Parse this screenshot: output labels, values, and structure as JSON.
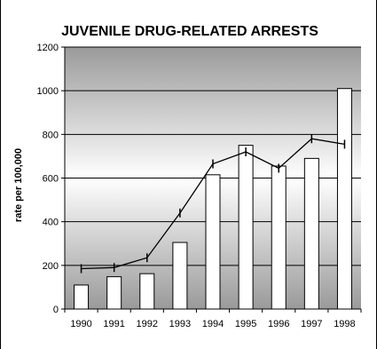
{
  "chart_data": {
    "type": "bar",
    "title": "JUVENILE DRUG-RELATED ARRESTS",
    "xlabel": "",
    "ylabel": "rate per 100,000",
    "categories": [
      "1990",
      "1991",
      "1992",
      "1993",
      "1994",
      "1995",
      "1996",
      "1997",
      "1998"
    ],
    "series": [
      {
        "type": "bar",
        "values": [
          110,
          148,
          162,
          305,
          615,
          750,
          655,
          690,
          1010
        ]
      },
      {
        "type": "line",
        "values": [
          185,
          190,
          235,
          440,
          665,
          720,
          645,
          780,
          755
        ]
      }
    ],
    "ylim": [
      0,
      1200
    ],
    "yticks": [
      0,
      200,
      400,
      600,
      800,
      1000,
      1200
    ],
    "grid": true,
    "background": "gradient-gray",
    "colors": {
      "bar_fill": "#ffffff",
      "bar_stroke": "#000000",
      "line": "#000000",
      "grid": "#000000",
      "bg_top": "#9a9a9a",
      "bg_bottom": "#ffffff"
    }
  }
}
